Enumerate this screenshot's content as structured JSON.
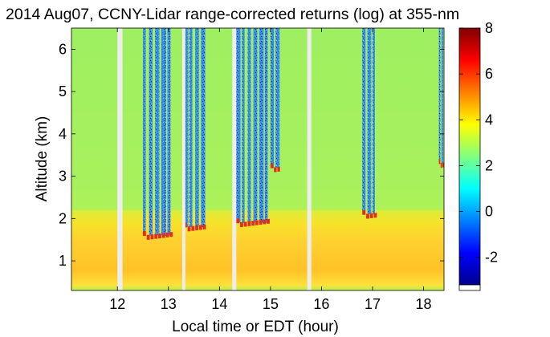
{
  "chart_data": {
    "type": "heatmap",
    "title": "2014 Aug07, CCNY-Lidar range-corrected returns (log) at 355-nm",
    "xlabel": "Local time or EDT (hour)",
    "ylabel": "Altitude (km)",
    "xlim": [
      11.1,
      18.4
    ],
    "ylim": [
      0.3,
      6.5
    ],
    "xticks": [
      12,
      13,
      14,
      15,
      16,
      17,
      18
    ],
    "yticks": [
      1,
      2,
      3,
      4,
      5,
      6
    ],
    "colorbar": {
      "colormap": "jet",
      "range": [
        -3.2,
        8
      ],
      "ticks": [
        8,
        6,
        4,
        2,
        0,
        -2
      ],
      "tick_labels": [
        "8",
        "6",
        "4",
        "2",
        "0",
        "-2"
      ]
    },
    "data_gaps_hours": [
      [
        12.0,
        12.1
      ],
      [
        13.27,
        13.32
      ],
      [
        14.25,
        14.33
      ],
      [
        15.72,
        15.8
      ]
    ],
    "cloud_events": [
      {
        "time_range": [
          12.5,
          13.1
        ],
        "cloud_base_km": 1.6
      },
      {
        "time_range": [
          13.3,
          13.75
        ],
        "cloud_base_km": 1.8
      },
      {
        "time_range": [
          14.33,
          15.0
        ],
        "cloud_base_km": 1.9
      },
      {
        "time_range": [
          15.0,
          15.2
        ],
        "cloud_base_km": 3.2
      },
      {
        "time_range": [
          16.8,
          17.1
        ],
        "cloud_base_km": 2.1
      },
      {
        "time_range": [
          18.3,
          18.4
        ],
        "cloud_base_km": 3.3
      }
    ],
    "boundary_layer_top_km": 2.2,
    "colors": {
      "background_field": "#a8f25c",
      "boundary_layer": "#ffc830",
      "cloud": "#e0301a",
      "above_cloud": "#2a8ee0",
      "gap": "#ededed"
    }
  }
}
